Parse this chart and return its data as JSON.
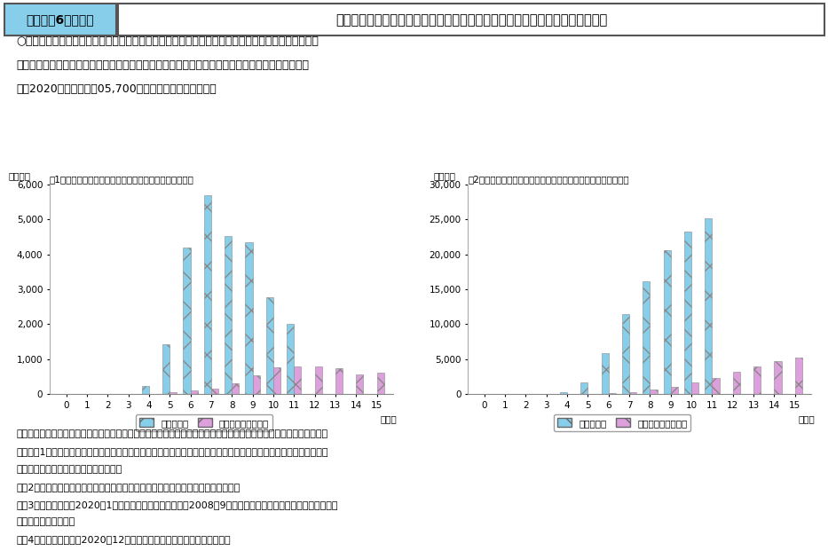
{
  "chart1_title": "（1）雇用調整助成金等　経過月ごとの支給決定額の推移",
  "chart2_title": "（2）雇用調整助成金等　経過月ごとの累積の支給決定額の推移",
  "x_labels": [
    0,
    1,
    2,
    3,
    4,
    5,
    6,
    7,
    8,
    9,
    10,
    11,
    12,
    13,
    14,
    15
  ],
  "x_label": "（月）",
  "y_label": "（億円）",
  "legend_kansetsu": "感染拡大期",
  "legend_lehman": "リーマンショック期",
  "chart1_kansetsu": [
    0,
    0,
    0,
    0,
    230,
    1430,
    4200,
    5700,
    4530,
    4340,
    2780,
    2000,
    0,
    0,
    0,
    0
  ],
  "chart1_lehman": [
    0,
    0,
    0,
    0,
    0,
    50,
    100,
    150,
    300,
    540,
    760,
    800,
    780,
    740,
    570,
    600
  ],
  "chart2_kansetsu": [
    0,
    0,
    0,
    0,
    300,
    1600,
    5900,
    11500,
    16100,
    20600,
    23300,
    25200,
    0,
    0,
    0,
    0
  ],
  "chart2_lehman": [
    0,
    0,
    0,
    0,
    0,
    50,
    150,
    300,
    580,
    1000,
    1700,
    2350,
    3200,
    4000,
    4700,
    5200
  ],
  "color_kansetsu": "#87CEEB",
  "color_lehman": "#DDA0DD",
  "ylim1": [
    0,
    6000
  ],
  "ylim2": [
    0,
    30000
  ],
  "yticks1": [
    0,
    1000,
    2000,
    3000,
    4000,
    5000,
    6000
  ],
  "yticks2": [
    0,
    5000,
    10000,
    15000,
    20000,
    25000,
    30000
  ],
  "header_left": "第１－（6）－６図",
  "header_right": "リーマンショック期と感染拡大期の雇用調整助成金等支給決定額の推移の比較",
  "body_line1": "○　雇用調整助成金等の月別の支給決定額の推移をみると、リーマンショック期よりも月別の最大支",
  "body_line2": "　給決定額、支給決定額の増加ペースともに上回っており、感染拡大期には、ショック後７か月後",
  "body_line3": "　（2020年８月）に約05,700億円の支給決定を行った。",
  "note_line1": "資料出所　厚生労働省公表の雇用調整助成金等の支給実績データをもとに厚生労働省政策統括官付政策統括室にて作成",
  "note_line2": "（注）　1）感染拡大期の額は、雇用調整助成金及び緊急雇用安定助成金の合計額。厚生労働省資料掲載の週別データ",
  "note_line3": "　　　　　に応じた調整を行っている。",
  "note_line4": "　　2）感染拡大期は支給決定額を、リーマンショック期は支給額を記載している。",
  "note_line5": "　　3）感染拡大期は2020年1月を、リーマンショック期は2008年9月をスタート時点とし、経過月ごとに比較",
  "note_line6": "　　　　　している。",
  "note_line7": "　　4）感染拡大期は、2020年12月までの支給実績データを示している。"
}
